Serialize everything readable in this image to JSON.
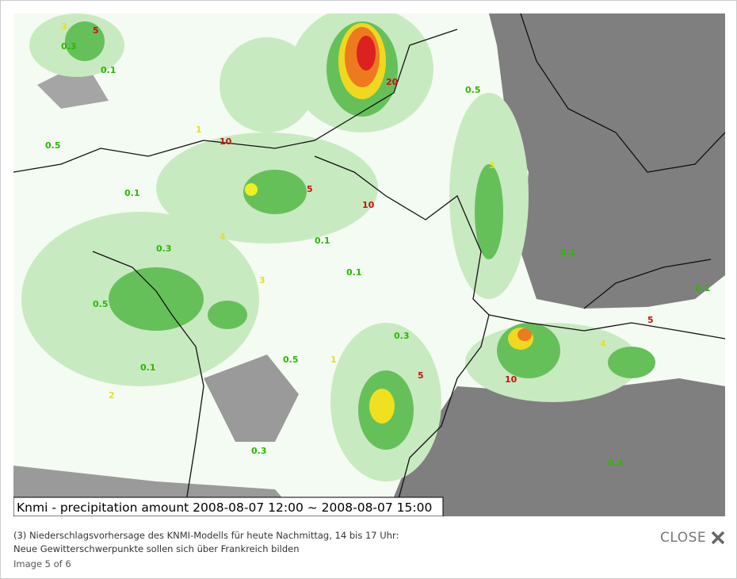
{
  "map": {
    "caption": "Knmi - precipitation amount 2008-08-07 12:00 ~ 2008-08-07 15:00",
    "labels": {
      "green": [
        "0.3",
        "0.1",
        "0.5",
        "0.1",
        "0.3",
        "0.5",
        "0.1",
        "0.3",
        "0.5",
        "0.1",
        "0.1",
        "0.3",
        "0.5",
        "0.1",
        "0.3",
        "0.1"
      ],
      "yellow": [
        "3",
        "1",
        "4",
        "2",
        "3",
        "1",
        "3",
        "4"
      ],
      "red": [
        "5",
        "10",
        "5",
        "10",
        "20",
        "5",
        "10",
        "5"
      ]
    }
  },
  "description": {
    "line1": "(3) Niederschlagsvorhersage des KNMI-Modells für heute Nachmittag, 14 bis 17 Uhr:",
    "line2": "Neue Gewitterschwerpunkte sollen sich über Frankreich bilden",
    "counter": "Image 5 of 6"
  },
  "close": "CLOSE"
}
